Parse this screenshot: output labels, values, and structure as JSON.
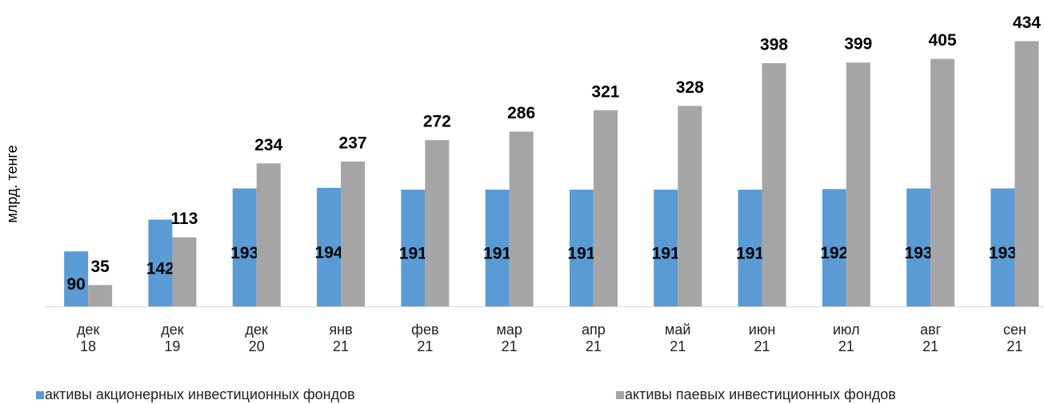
{
  "chart_data": {
    "type": "bar",
    "y_label": "млрд. тенге",
    "categories": [
      "дек 18",
      "дек 19",
      "дек 20",
      "янв 21",
      "фев 21",
      "мар 21",
      "апр 21",
      "май 21",
      "июн 21",
      "июл 21",
      "авг 21",
      "сен 21"
    ],
    "series": [
      {
        "name": "активы акционерных инвестиционных фондов",
        "color": "#5b9bd5",
        "values": [
          90,
          142,
          193,
          194,
          191,
          191,
          191,
          191,
          191,
          192,
          193,
          193
        ]
      },
      {
        "name": "активы паевых инвестиционных фондов",
        "color": "#a5a5a5",
        "values": [
          35,
          113,
          234,
          237,
          272,
          286,
          321,
          328,
          398,
          399,
          405,
          434
        ]
      }
    ],
    "ylim": [
      0,
      500
    ]
  }
}
